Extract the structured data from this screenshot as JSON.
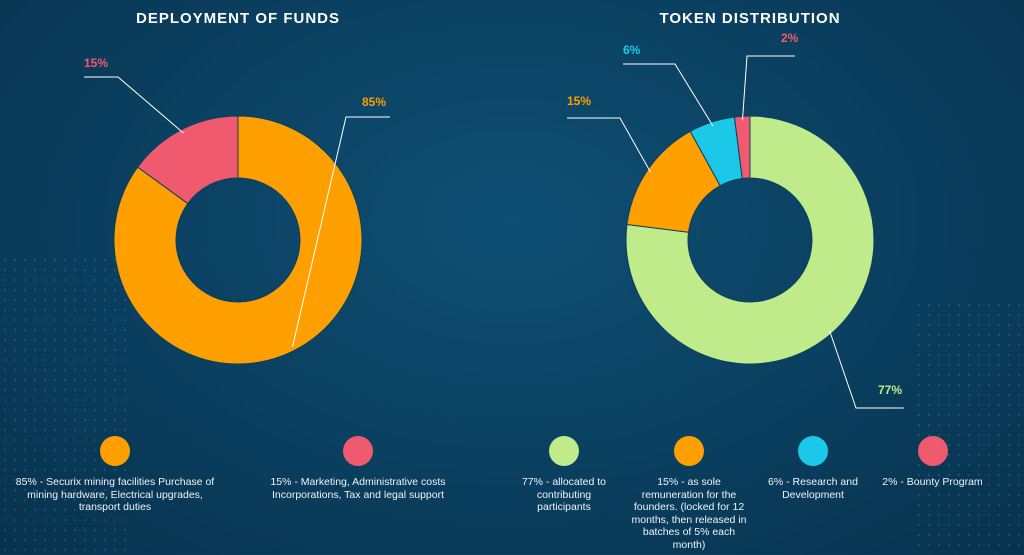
{
  "chart_data": [
    {
      "type": "pie",
      "title": "DEPLOYMENT OF FUNDS",
      "slices": [
        {
          "label": "85%",
          "value": 85,
          "color": "#ffa000",
          "legend": "85% - Securix mining facilities Purchase of mining hardware, Electrical upgrades, transport duties"
        },
        {
          "label": "15%",
          "value": 15,
          "color": "#f05a6e",
          "legend": "15% - Marketing, Administrative costs Incorporations, Tax and legal support"
        }
      ]
    },
    {
      "type": "pie",
      "title": "TOKEN DISTRIBUTION",
      "slices": [
        {
          "label": "77%",
          "value": 77,
          "color": "#bfeb8a",
          "legend": "77% - allocated to contributing participants"
        },
        {
          "label": "15%",
          "value": 15,
          "color": "#ffa000",
          "legend": "15% - as sole remuneration for the founders. (locked for 12 months, then released in batches of 5% each month)"
        },
        {
          "label": "6%",
          "value": 6,
          "color": "#1cc8e8",
          "legend": "6% - Research and Development"
        },
        {
          "label": "2%",
          "value": 2,
          "color": "#f05a6e",
          "legend": "2% - Bounty Program"
        }
      ]
    }
  ]
}
